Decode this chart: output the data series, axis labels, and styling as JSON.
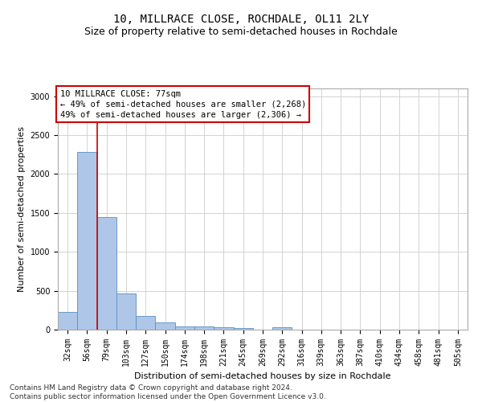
{
  "title": "10, MILLRACE CLOSE, ROCHDALE, OL11 2LY",
  "subtitle": "Size of property relative to semi-detached houses in Rochdale",
  "xlabel": "Distribution of semi-detached houses by size in Rochdale",
  "ylabel": "Number of semi-detached properties",
  "annotation_line1": "10 MILLRACE CLOSE: 77sqm",
  "annotation_line2": "← 49% of semi-detached houses are smaller (2,268)",
  "annotation_line3": "49% of semi-detached houses are larger (2,306) →",
  "footer_line1": "Contains HM Land Registry data © Crown copyright and database right 2024.",
  "footer_line2": "Contains public sector information licensed under the Open Government Licence v3.0.",
  "categories": [
    "32sqm",
    "56sqm",
    "79sqm",
    "103sqm",
    "127sqm",
    "150sqm",
    "174sqm",
    "198sqm",
    "221sqm",
    "245sqm",
    "269sqm",
    "292sqm",
    "316sqm",
    "339sqm",
    "363sqm",
    "387sqm",
    "410sqm",
    "434sqm",
    "458sqm",
    "481sqm",
    "505sqm"
  ],
  "values": [
    230,
    2280,
    1450,
    460,
    175,
    90,
    45,
    38,
    28,
    20,
    0,
    30,
    0,
    0,
    0,
    0,
    0,
    0,
    0,
    0,
    0
  ],
  "bar_color": "#aec6e8",
  "bar_edge_color": "#5a8fc2",
  "vline_color": "#cc0000",
  "vline_position": 1.5,
  "ylim": [
    0,
    3100
  ],
  "yticks": [
    0,
    500,
    1000,
    1500,
    2000,
    2500,
    3000
  ],
  "grid_color": "#cccccc",
  "annotation_box_color": "#ffffff",
  "annotation_box_edge": "#cc0000",
  "title_fontsize": 10,
  "subtitle_fontsize": 9,
  "axis_label_fontsize": 8,
  "tick_fontsize": 7,
  "annotation_fontsize": 7.5,
  "footer_fontsize": 6.5,
  "ylabel_fontsize": 8
}
